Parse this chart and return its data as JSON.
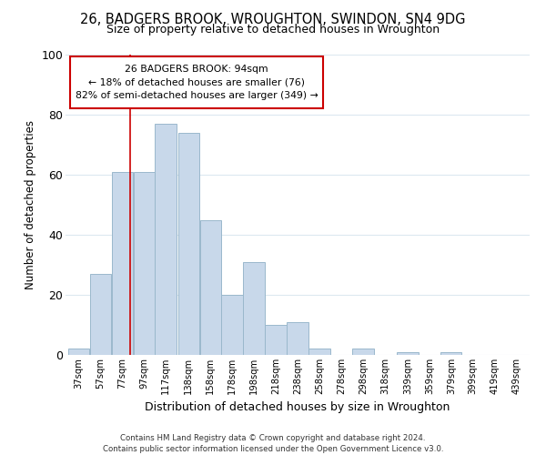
{
  "title": "26, BADGERS BROOK, WROUGHTON, SWINDON, SN4 9DG",
  "subtitle": "Size of property relative to detached houses in Wroughton",
  "xlabel": "Distribution of detached houses by size in Wroughton",
  "ylabel": "Number of detached properties",
  "bar_color": "#c8d8ea",
  "bar_edge_color": "#9ab8cc",
  "property_line_x": 94,
  "property_line_color": "#cc0000",
  "categories": [
    "37sqm",
    "57sqm",
    "77sqm",
    "97sqm",
    "117sqm",
    "138sqm",
    "158sqm",
    "178sqm",
    "198sqm",
    "218sqm",
    "238sqm",
    "258sqm",
    "278sqm",
    "298sqm",
    "318sqm",
    "339sqm",
    "359sqm",
    "379sqm",
    "399sqm",
    "419sqm",
    "439sqm"
  ],
  "bin_edges": [
    37,
    57,
    77,
    97,
    117,
    138,
    158,
    178,
    198,
    218,
    238,
    258,
    278,
    298,
    318,
    339,
    359,
    379,
    399,
    419,
    439
  ],
  "bar_heights": [
    2,
    27,
    61,
    61,
    77,
    74,
    45,
    20,
    31,
    10,
    11,
    2,
    0,
    2,
    0,
    1,
    0,
    1,
    0,
    0
  ],
  "ylim": [
    0,
    100
  ],
  "ann_line1": "26 BADGERS BROOK: 94sqm",
  "ann_line2": "← 18% of detached houses are smaller (76)",
  "ann_line3": "82% of semi-detached houses are larger (349) →",
  "footer_text": "Contains HM Land Registry data © Crown copyright and database right 2024.\nContains public sector information licensed under the Open Government Licence v3.0.",
  "background_color": "#ffffff",
  "grid_color": "#dce8f0"
}
